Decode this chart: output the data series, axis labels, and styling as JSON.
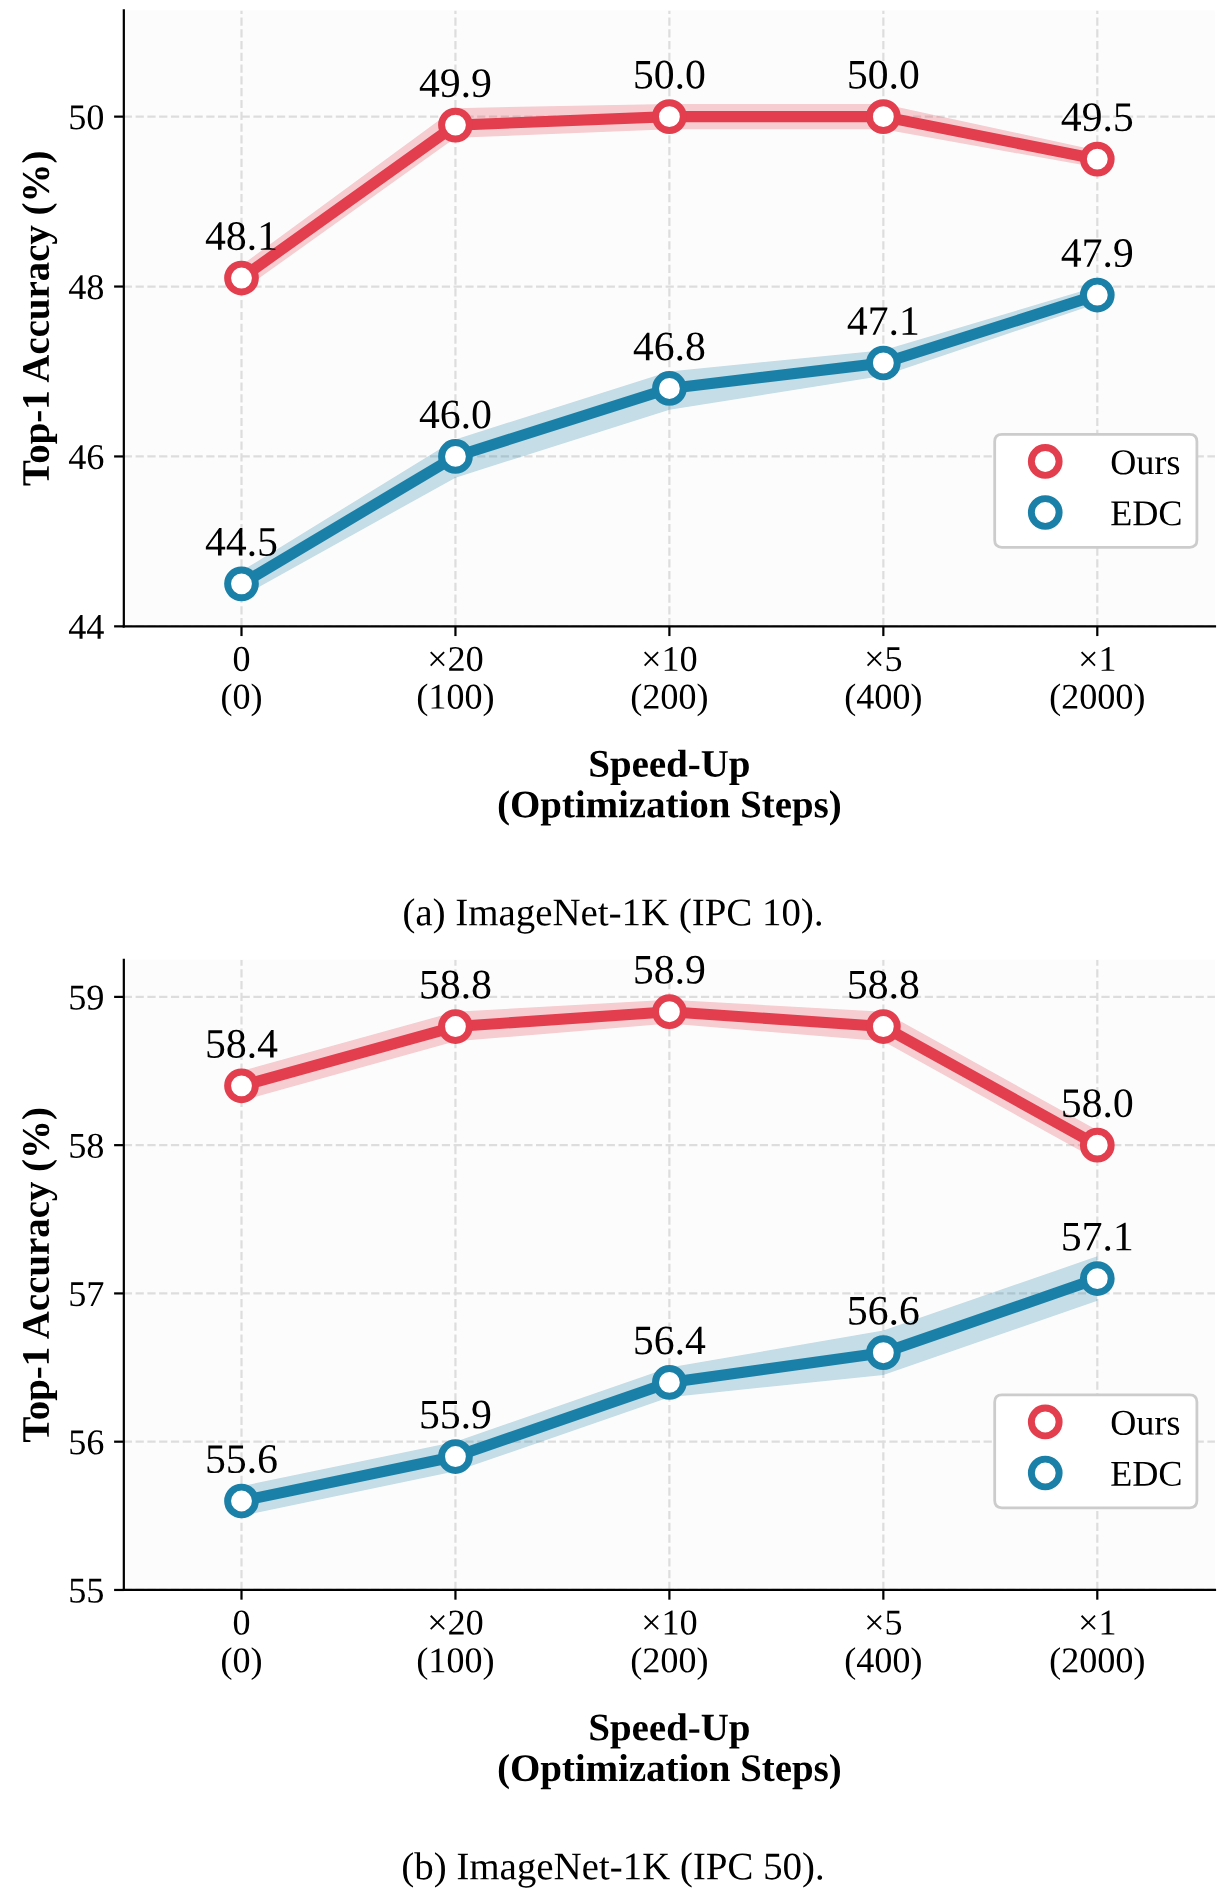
{
  "chart_data": [
    {
      "type": "line",
      "categories": [
        "0\n(0)",
        "×20\n(100)",
        "×10\n(200)",
        "×5\n(400)",
        "×1\n(2000)"
      ],
      "xlabel": "Speed-Up\n(Optimization Steps)",
      "ylabel": "Top-1 Accuracy (%)",
      "ylim": [
        44,
        51.25
      ],
      "yticks": [
        44,
        46,
        48,
        50
      ],
      "grid": true,
      "legend": "right",
      "marker": "circle",
      "line_style": "solid",
      "annotations": [
        "(a) ImageNet-1K (IPC 10)."
      ],
      "series": [
        {
          "name": "Ours",
          "color": "#e23e4e",
          "values": [
            48.1,
            49.9,
            50.0,
            50.0,
            49.5
          ],
          "value_labels": [
            "48.1",
            "49.9",
            "50.0",
            "50.0",
            "49.5"
          ],
          "lower": [
            47.95,
            49.75,
            49.85,
            49.85,
            49.4
          ],
          "upper": [
            48.25,
            50.1,
            50.15,
            50.15,
            49.6
          ]
        },
        {
          "name": "EDC",
          "color": "#1b80a8",
          "values": [
            44.5,
            46.0,
            46.8,
            47.1,
            47.9
          ],
          "value_labels": [
            "44.5",
            "46.0",
            "46.8",
            "47.1",
            "47.9"
          ],
          "lower": [
            44.35,
            45.75,
            46.55,
            46.95,
            47.8
          ],
          "upper": [
            44.65,
            46.2,
            47.0,
            47.25,
            48.0
          ]
        }
      ]
    },
    {
      "type": "line",
      "categories": [
        "0\n(0)",
        "×20\n(100)",
        "×10\n(200)",
        "×5\n(400)",
        "×1\n(2000)"
      ],
      "xlabel": "Speed-Up\n(Optimization Steps)",
      "ylabel": "Top-1 Accuracy (%)",
      "ylim": [
        55,
        59.25
      ],
      "yticks": [
        55,
        56,
        57,
        58,
        59
      ],
      "grid": true,
      "legend": "right",
      "marker": "circle",
      "line_style": "solid",
      "annotations": [
        "(b) ImageNet-1K (IPC 50)."
      ],
      "series": [
        {
          "name": "Ours",
          "color": "#e23e4e",
          "values": [
            58.4,
            58.8,
            58.9,
            58.8,
            58.0
          ],
          "value_labels": [
            "58.4",
            "58.8",
            "58.9",
            "58.8",
            "58.0"
          ],
          "lower": [
            58.3,
            58.7,
            58.82,
            58.7,
            57.9
          ],
          "upper": [
            58.5,
            58.9,
            58.98,
            58.9,
            58.1
          ]
        },
        {
          "name": "EDC",
          "color": "#1b80a8",
          "values": [
            55.6,
            55.9,
            56.4,
            56.6,
            57.1
          ],
          "value_labels": [
            "55.6",
            "55.9",
            "56.4",
            "56.6",
            "57.1"
          ],
          "lower": [
            55.5,
            55.8,
            56.3,
            56.45,
            56.95
          ],
          "upper": [
            55.7,
            56.0,
            56.5,
            56.75,
            57.25
          ]
        }
      ]
    }
  ]
}
